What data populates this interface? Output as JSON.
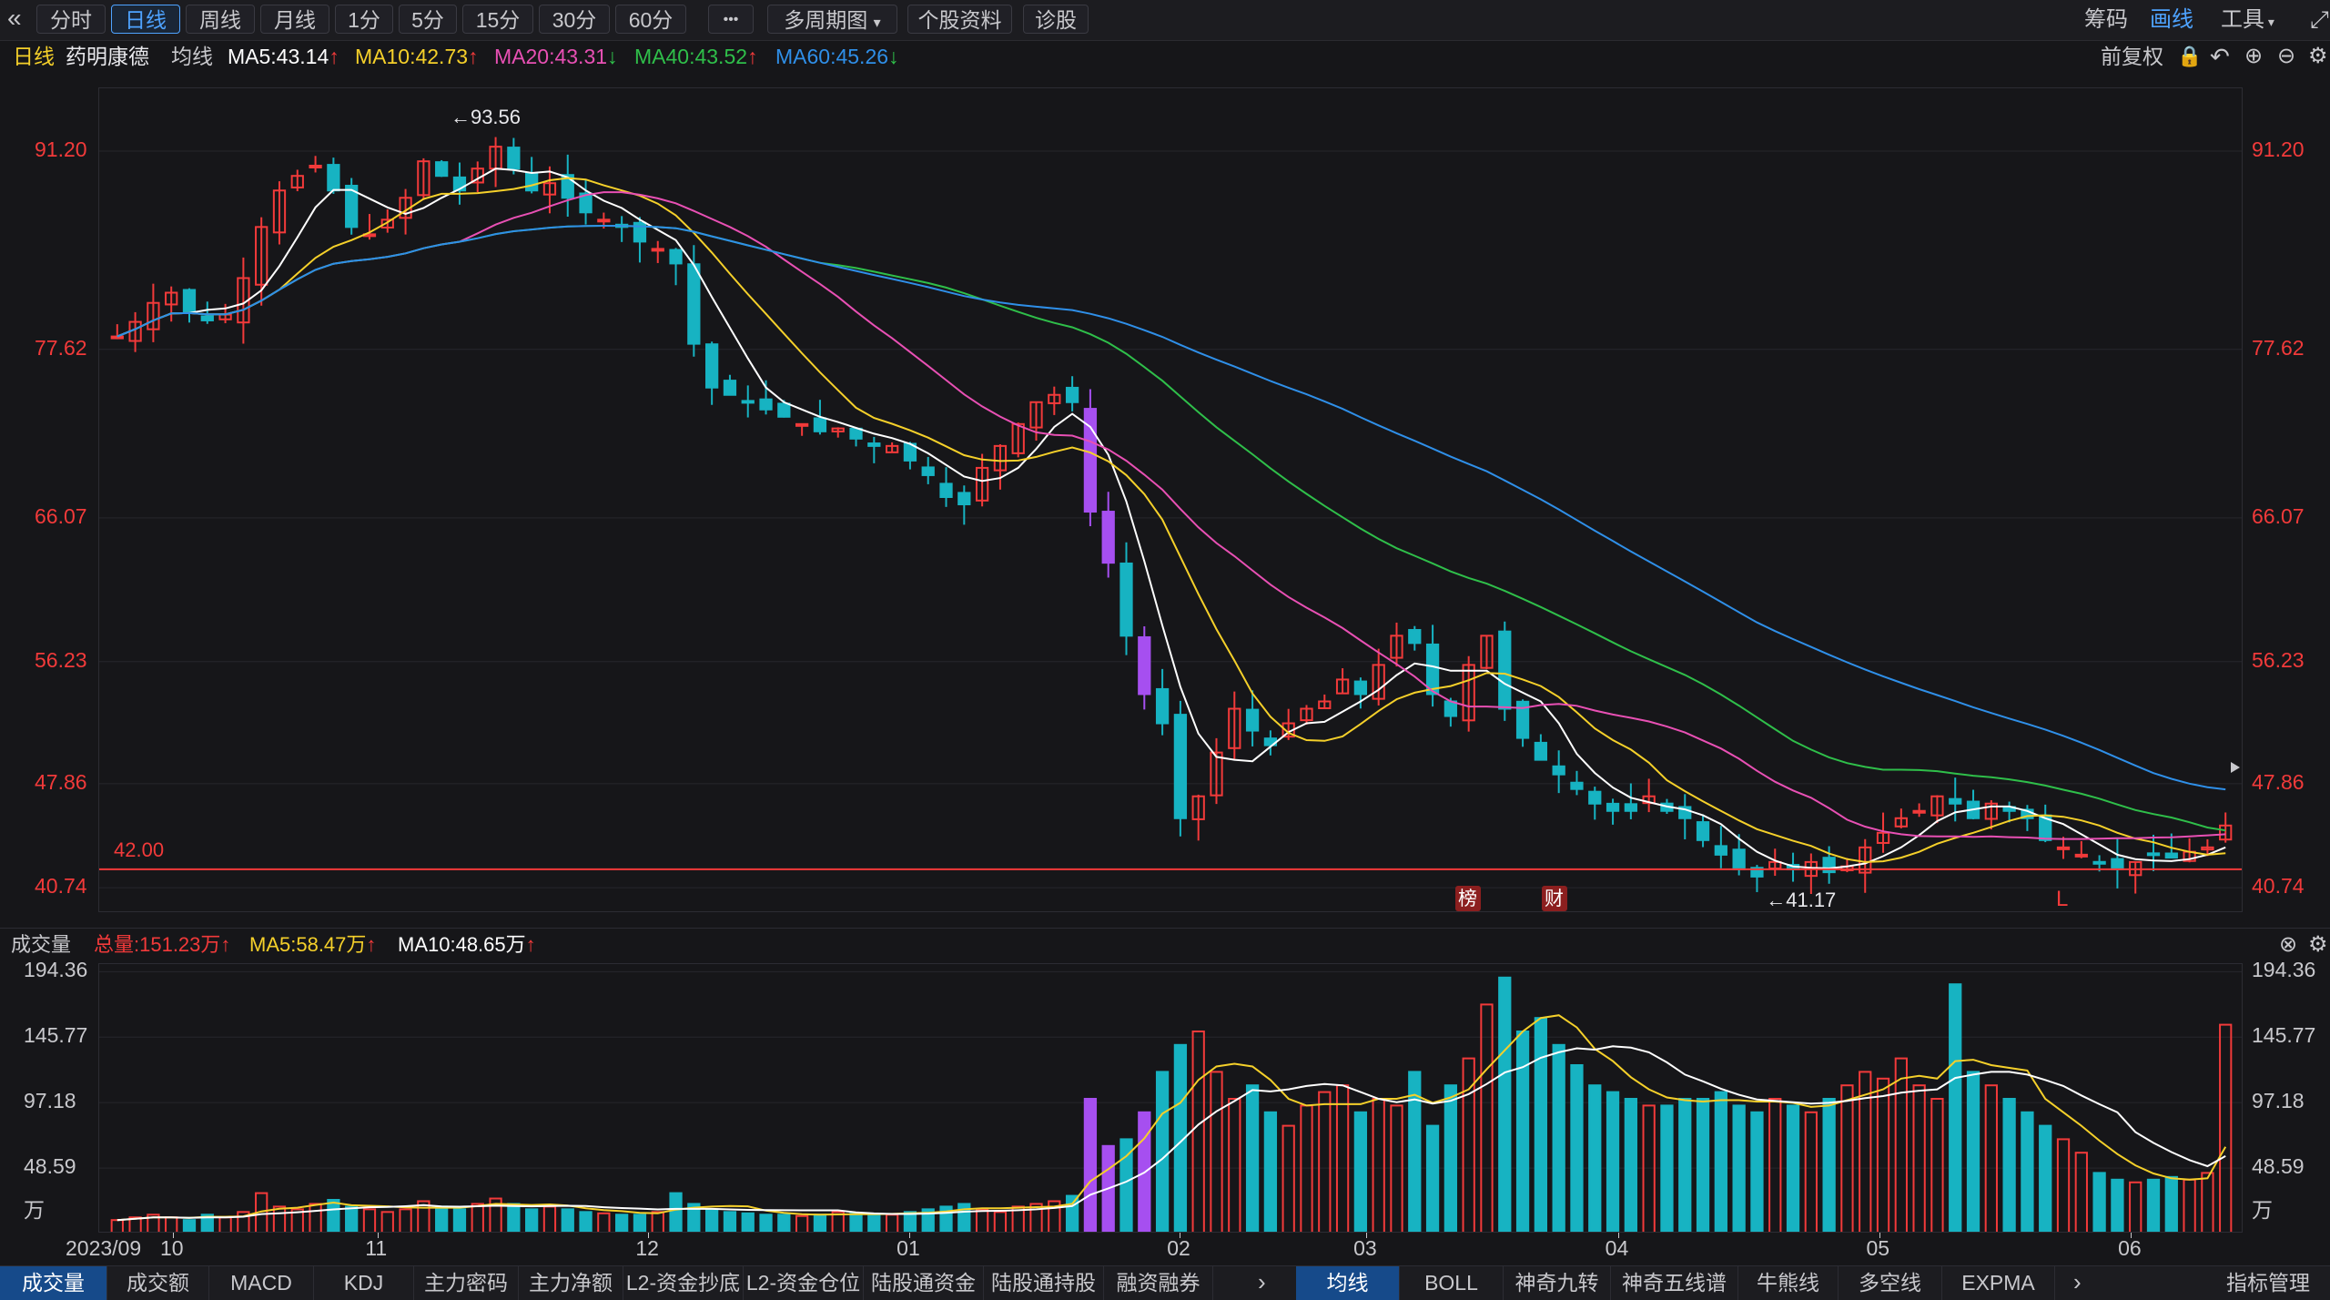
{
  "toolbar": {
    "collapse_icon": "«",
    "tabs": [
      "分时",
      "日线",
      "周线",
      "月线",
      "1分",
      "5分",
      "15分",
      "30分",
      "60分"
    ],
    "active_tab": "日线",
    "more_label": "•••",
    "multi_period": "多周期图",
    "stock_profile": "个股资料",
    "diagnose": "诊股",
    "right_chips": "筹码",
    "right_draw": "画线",
    "right_tools": "工具",
    "fullscreen_icon": "expand-icon"
  },
  "legend": {
    "period": "日线",
    "stock_name": "药明康德",
    "ma_type": "均线",
    "ma5": "MA5:43.14",
    "ma10": "MA10:42.73",
    "ma20": "MA20:43.31",
    "ma40": "MA40:43.52",
    "ma60": "MA60:45.26",
    "adjust": "前复权"
  },
  "colors": {
    "up": "#f23a3a",
    "down": "#17b3c2",
    "ma5": "#ffffff",
    "ma10": "#f5d02a",
    "ma20": "#e850b4",
    "ma40": "#2fbf4a",
    "ma60": "#2f8fe8",
    "limit": "#a64ff0",
    "accent": "#4ea3ff"
  },
  "price_axis": {
    "ticks": [
      "91.20",
      "77.62",
      "66.07",
      "56.23",
      "47.86",
      "40.74"
    ],
    "high_mark": "←93.56",
    "low_mark": "←41.17",
    "ref_line": "42.00",
    "badges": [
      "榜",
      "财"
    ],
    "mark_L": "L"
  },
  "volume": {
    "title": "成交量",
    "total": "总量:151.23万",
    "ma5": "MA5:58.47万",
    "ma10": "MA10:48.65万",
    "ticks": [
      "194.36",
      "145.77",
      "97.18",
      "48.59",
      "万"
    ]
  },
  "dates": [
    "2023/09",
    "10",
    "11",
    "12",
    "01",
    "02",
    "03",
    "04",
    "05",
    "06"
  ],
  "bottom_tabs_left": [
    "成交量",
    "成交额",
    "MACD",
    "KDJ",
    "主力密码",
    "主力净额",
    "L2-资金抄底",
    "L2-资金仓位",
    "陆股通资金",
    "陆股通持股",
    "融资融券"
  ],
  "bottom_tabs_right": [
    "均线",
    "BOLL",
    "神奇九转",
    "神奇五线谱",
    "牛熊线",
    "多空线",
    "EXPMA"
  ],
  "indicator_mgmt": "指标管理",
  "chart_data": {
    "type": "candlestick",
    "y_ticks": [
      91.2,
      77.62,
      66.07,
      56.23,
      47.86,
      40.74
    ],
    "ylim": [
      39.0,
      95.5
    ],
    "volume_ylim": [
      0,
      200
    ],
    "close_path": [
      78.5,
      79.5,
      80.8,
      81.5,
      80.2,
      79.6,
      80.0,
      82.5,
      86.0,
      88.5,
      89.5,
      90.2,
      88.5,
      86.0,
      85.5,
      86.5,
      88.0,
      90.5,
      89.5,
      88.5,
      90.0,
      91.5,
      90.0,
      88.5,
      89.0,
      88.0,
      87.0,
      86.5,
      86.0,
      85.0,
      84.5,
      83.5,
      78.0,
      75.0,
      74.5,
      74.0,
      73.5,
      73.0,
      72.5,
      72.0,
      72.2,
      71.5,
      71.0,
      71.0,
      70.0,
      69.0,
      67.5,
      67.0,
      69.5,
      71.0,
      72.5,
      74.0,
      74.5,
      74.0,
      66.5,
      63.0,
      58.0,
      54.0,
      52.0,
      45.5,
      47.0,
      50.0,
      53.0,
      51.5,
      50.5,
      52.0,
      53.0,
      53.5,
      55.0,
      54.0,
      56.0,
      58.0,
      57.5,
      54.0,
      52.5,
      56.0,
      58.0,
      53.0,
      51.0,
      49.5,
      48.5,
      47.5,
      46.5,
      46.0,
      46.0,
      47.0,
      46.0,
      45.5,
      44.0,
      43.0,
      42.0,
      41.5,
      42.5,
      42.0,
      42.5,
      41.8,
      42.2,
      43.5,
      44.5,
      45.5,
      46.0,
      47.0,
      46.5,
      45.5,
      46.5,
      46.0,
      45.5,
      44.0,
      43.5,
      43.0,
      42.5,
      42.0,
      42.5,
      43.0,
      42.8,
      43.2,
      43.5,
      45.0
    ],
    "volume_path": [
      10,
      12,
      14,
      12,
      10,
      14,
      12,
      16,
      30,
      20,
      18,
      22,
      25,
      20,
      18,
      16,
      18,
      24,
      20,
      18,
      22,
      26,
      22,
      18,
      20,
      18,
      16,
      15,
      14,
      14,
      16,
      30,
      22,
      18,
      16,
      15,
      14,
      14,
      13,
      14,
      16,
      15,
      14,
      14,
      16,
      18,
      20,
      22,
      18,
      16,
      20,
      22,
      24,
      28,
      100,
      65,
      70,
      90,
      120,
      140,
      150,
      120,
      100,
      110,
      90,
      80,
      95,
      105,
      110,
      90,
      100,
      95,
      120,
      80,
      110,
      130,
      170,
      190,
      150,
      160,
      140,
      125,
      110,
      105,
      100,
      95,
      95,
      100,
      100,
      105,
      95,
      90,
      100,
      95,
      90,
      100,
      110,
      120,
      115,
      130,
      110,
      100,
      185,
      120,
      110,
      100,
      90,
      80,
      70,
      60,
      45,
      40,
      38,
      40,
      42,
      40,
      45,
      155
    ]
  }
}
